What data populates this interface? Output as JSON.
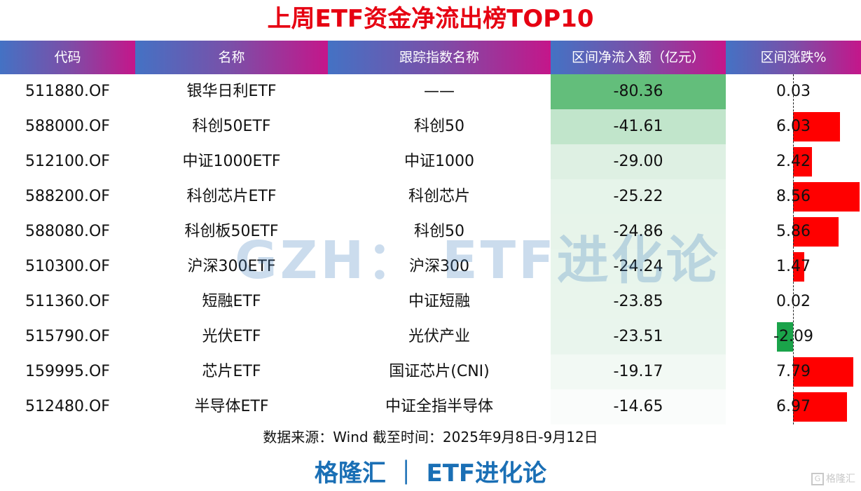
{
  "title": "上周ETF资金净流出榜TOP10",
  "headers": [
    "代码",
    "名称",
    "跟踪指数名称",
    "区间净流入额（亿元）",
    "区间涨跌%"
  ],
  "rows": [
    {
      "code": "511880.OF",
      "name": "银华日利ETF",
      "index": "——",
      "flow": "-80.36",
      "chg": "0.03"
    },
    {
      "code": "588000.OF",
      "name": "科创50ETF",
      "index": "科创50",
      "flow": "-41.61",
      "chg": "6.03"
    },
    {
      "code": "512100.OF",
      "name": "中证1000ETF",
      "index": "中证1000",
      "flow": "-29.00",
      "chg": "2.42"
    },
    {
      "code": "588200.OF",
      "name": "科创芯片ETF",
      "index": "科创芯片",
      "flow": "-25.22",
      "chg": "8.56"
    },
    {
      "code": "588080.OF",
      "name": "科创板50ETF",
      "index": "科创50",
      "flow": "-24.86",
      "chg": "5.86"
    },
    {
      "code": "510300.OF",
      "name": "沪深300ETF",
      "index": "沪深300",
      "flow": "-24.24",
      "chg": "1.47"
    },
    {
      "code": "511360.OF",
      "name": "短融ETF",
      "index": "中证短融",
      "flow": "-23.85",
      "chg": "0.02"
    },
    {
      "code": "515790.OF",
      "name": "光伏ETF",
      "index": "光伏产业",
      "flow": "-23.51",
      "chg": "-2.09"
    },
    {
      "code": "159995.OF",
      "name": "芯片ETF",
      "index": "国证芯片(CNI)",
      "flow": "-19.17",
      "chg": "7.79"
    },
    {
      "code": "512480.OF",
      "name": "半导体ETF",
      "index": "中证全指半导体",
      "flow": "-14.65",
      "chg": "6.97"
    }
  ],
  "watermark": "GZH： ETF进化论",
  "source": "数据来源：Wind 截至时间：2025年9月8日-9月12日",
  "brand": "格隆汇 ｜ ETF进化论",
  "corner_logo": "格隆汇",
  "colors": {
    "title": "#e60012",
    "header_gradient_start": "#4472c4",
    "header_gradient_end": "#c4168a",
    "positive_bar": "#ff0000",
    "negative_bar": "#1aa34a",
    "heat_max": "#63be7b",
    "brand": "#1a6fb5"
  },
  "chart_data": {
    "type": "table",
    "title": "上周ETF资金净流出榜TOP10",
    "columns": [
      "代码",
      "名称",
      "跟踪指数名称",
      "区间净流入额（亿元）",
      "区间涨跌%"
    ],
    "categories": [
      "511880.OF",
      "588000.OF",
      "512100.OF",
      "588200.OF",
      "588080.OF",
      "510300.OF",
      "511360.OF",
      "515790.OF",
      "159995.OF",
      "512480.OF"
    ],
    "series": [
      {
        "name": "区间净流入额（亿元）",
        "values": [
          -80.36,
          -41.61,
          -29.0,
          -25.22,
          -24.86,
          -24.24,
          -23.85,
          -23.51,
          -19.17,
          -14.65
        ],
        "style": "heatmap-green"
      },
      {
        "name": "区间涨跌%",
        "values": [
          0.03,
          6.03,
          2.42,
          8.56,
          5.86,
          1.47,
          0.02,
          -2.09,
          7.79,
          6.97
        ],
        "style": "data-bar (red positive, green negative)"
      }
    ],
    "source": "数据来源：Wind 截至时间：2025年9月8日-9月12日"
  }
}
